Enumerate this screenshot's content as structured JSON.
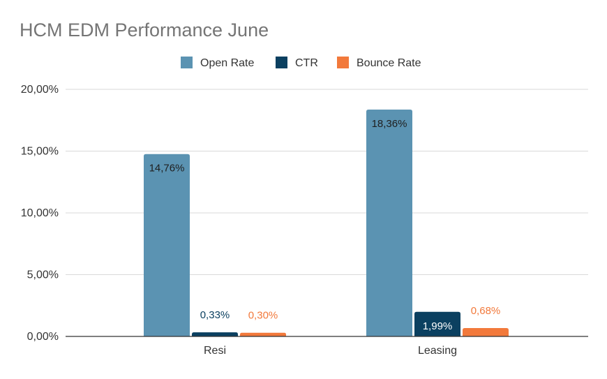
{
  "chart_data": {
    "type": "bar",
    "title": "HCM EDM Performance June",
    "categories": [
      "Resi",
      "Leasing"
    ],
    "series": [
      {
        "name": "Open Rate",
        "color": "#5b93b2",
        "values": [
          14.76,
          18.36
        ],
        "labels": [
          "14,76%",
          "18,36%"
        ],
        "label_color": "#1f1f1f"
      },
      {
        "name": "CTR",
        "color": "#0b4060",
        "values": [
          0.33,
          1.99
        ],
        "labels": [
          "0,33%",
          "1,99%"
        ],
        "label_color": "#0b4060"
      },
      {
        "name": "Bounce Rate",
        "color": "#f2793b",
        "values": [
          0.3,
          0.68
        ],
        "labels": [
          "0,30%",
          "0,68%"
        ],
        "label_color": "#f2793b"
      }
    ],
    "y_ticks": [
      {
        "value": 0,
        "label": "0,00%"
      },
      {
        "value": 5,
        "label": "5,00%"
      },
      {
        "value": 10,
        "label": "10,00%"
      },
      {
        "value": 15,
        "label": "15,00%"
      },
      {
        "value": 20,
        "label": "20,00%"
      }
    ],
    "ylim": [
      0,
      20
    ],
    "xlabel": "",
    "ylabel": "",
    "grid": true,
    "legend_position": "top-center"
  }
}
